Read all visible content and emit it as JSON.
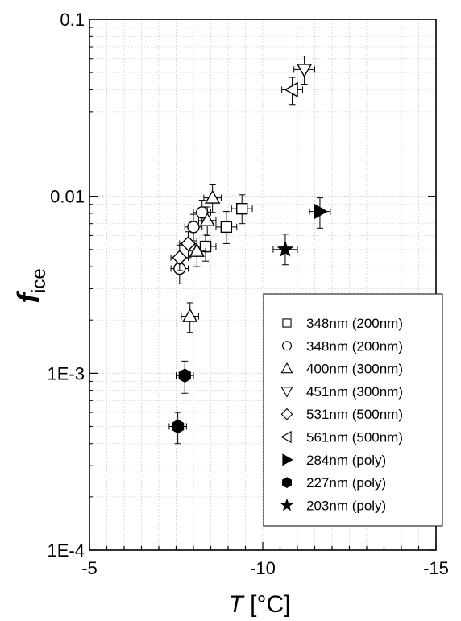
{
  "chart_data": {
    "type": "scatter",
    "xlabel": {
      "italic": "T",
      "unit": " [°C]"
    },
    "ylabel": {
      "italic": "f",
      "sub": "ice"
    },
    "xlim": [
      -5,
      -15
    ],
    "ylim": [
      0.0001,
      0.1
    ],
    "yscale": "log",
    "grid": true,
    "x_ticks": [
      {
        "value": -5,
        "label": "-5"
      },
      {
        "value": -10,
        "label": "-10"
      },
      {
        "value": -15,
        "label": "-15"
      }
    ],
    "y_ticks": [
      {
        "value": 0.1,
        "label": "0.1"
      },
      {
        "value": 0.01,
        "label": "0.01"
      },
      {
        "value": 0.001,
        "label": "1E-3"
      },
      {
        "value": 0.0001,
        "label": "1E-4"
      }
    ],
    "legend_position": "lower-right",
    "series": [
      {
        "name": "348nm (200nm)",
        "marker": "square",
        "filled": false,
        "points": [
          {
            "x": -8.35,
            "y": 0.0052,
            "xerr": 0.3,
            "yerr": [
              0.0009,
              0.0009
            ]
          },
          {
            "x": -8.95,
            "y": 0.0067,
            "xerr": 0.3,
            "yerr": [
              0.0013,
              0.0015
            ]
          },
          {
            "x": -9.4,
            "y": 0.0085,
            "xerr": 0.3,
            "yerr": [
              0.0015,
              0.0017
            ]
          }
        ]
      },
      {
        "name": "348nm (200nm)",
        "marker": "circle",
        "filled": false,
        "points": [
          {
            "x": -7.6,
            "y": 0.0039,
            "xerr": 0.25,
            "yerr": [
              0.0007,
              0.0007
            ]
          },
          {
            "x": -8.0,
            "y": 0.0067,
            "xerr": 0.25,
            "yerr": [
              0.0011,
              0.0012
            ]
          },
          {
            "x": -8.25,
            "y": 0.0081,
            "xerr": 0.25,
            "yerr": [
              0.0013,
              0.0014
            ]
          }
        ]
      },
      {
        "name": "400nm (300nm)",
        "marker": "triangle-up",
        "filled": false,
        "points": [
          {
            "x": -7.9,
            "y": 0.0021,
            "xerr": 0.25,
            "yerr": [
              0.0004,
              0.0004
            ]
          },
          {
            "x": -8.1,
            "y": 0.0049,
            "xerr": 0.25,
            "yerr": [
              0.0009,
              0.0009
            ]
          },
          {
            "x": -8.4,
            "y": 0.0073,
            "xerr": 0.25,
            "yerr": [
              0.0013,
              0.0014
            ]
          },
          {
            "x": -8.55,
            "y": 0.0098,
            "xerr": 0.25,
            "yerr": [
              0.0017,
              0.0018
            ]
          }
        ]
      },
      {
        "name": "451nm (300nm)",
        "marker": "triangle-down",
        "filled": false,
        "points": [
          {
            "x": -11.2,
            "y": 0.052,
            "xerr": 0.3,
            "yerr": [
              0.009,
              0.01
            ]
          }
        ]
      },
      {
        "name": "531nm (500nm)",
        "marker": "diamond",
        "filled": false,
        "points": [
          {
            "x": -7.6,
            "y": 0.0045,
            "xerr": 0.25,
            "yerr": [
              0.0007,
              0.0008
            ]
          },
          {
            "x": -7.85,
            "y": 0.0054,
            "xerr": 0.25,
            "yerr": [
              0.0009,
              0.0009
            ]
          }
        ]
      },
      {
        "name": "561nm (500nm)",
        "marker": "triangle-left",
        "filled": false,
        "points": [
          {
            "x": -10.85,
            "y": 0.04,
            "xerr": 0.3,
            "yerr": [
              0.007,
              0.007
            ]
          }
        ]
      },
      {
        "name": "284nm (poly)",
        "marker": "triangle-right",
        "filled": true,
        "points": [
          {
            "x": -11.65,
            "y": 0.0082,
            "xerr": 0.3,
            "yerr": [
              0.0016,
              0.0016
            ]
          }
        ]
      },
      {
        "name": "227nm (poly)",
        "marker": "hexagon",
        "filled": true,
        "points": [
          {
            "x": -7.75,
            "y": 0.00097,
            "xerr": 0.25,
            "yerr": [
              0.0002,
              0.0002
            ]
          },
          {
            "x": -7.55,
            "y": 0.0005,
            "xerr": 0.25,
            "yerr": [
              0.0001,
              0.0001
            ]
          }
        ]
      },
      {
        "name": "203nm (poly)",
        "marker": "star",
        "filled": true,
        "points": [
          {
            "x": -10.65,
            "y": 0.005,
            "xerr": 0.35,
            "yerr": [
              0.0009,
              0.0011
            ]
          }
        ]
      }
    ]
  }
}
